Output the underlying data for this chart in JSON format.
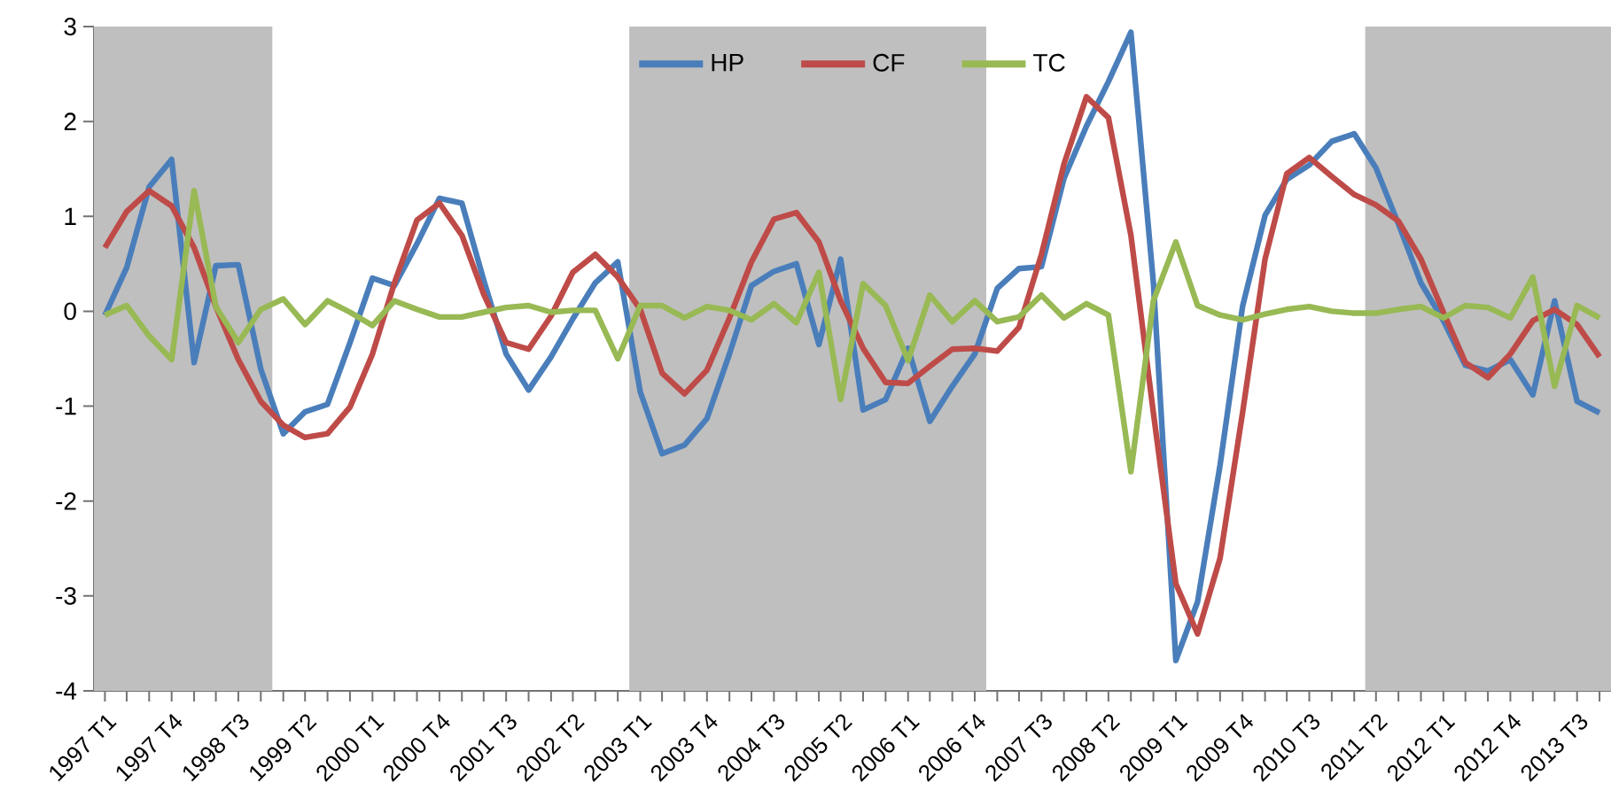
{
  "chart_data": {
    "type": "line",
    "x": [
      "1997-02-15",
      "1997-05-15",
      "1997-08-15",
      "1997-11-15",
      "1998-02-15",
      "1998-05-15",
      "1998-08-15",
      "1998-11-15",
      "1999-02-15",
      "1999-05-15",
      "1999-08-15",
      "1999-11-15",
      "2000-02-15",
      "2000-05-15",
      "2000-08-15",
      "2000-11-15",
      "2001-02-15",
      "2001-05-15",
      "2001-08-15",
      "2001-11-15",
      "2002-02-15",
      "2002-05-15",
      "2002-08-15",
      "2002-11-15",
      "2003-02-15",
      "2003-05-15",
      "2003-08-15",
      "2003-11-15",
      "2004-02-15",
      "2004-05-15",
      "2004-08-15",
      "2004-11-15",
      "2005-02-15",
      "2005-05-15",
      "2005-08-15",
      "2005-11-15",
      "2006-02-15",
      "2006-05-15",
      "2006-08-15",
      "2006-11-15",
      "2007-02-15",
      "2007-05-15",
      "2007-08-15",
      "2007-11-15",
      "2008-02-15",
      "2008-05-15",
      "2008-08-15",
      "2008-11-15",
      "2009-02-15",
      "2009-05-15",
      "2009-08-15",
      "2009-11-15",
      "2010-02-15",
      "2010-05-15",
      "2010-08-15",
      "2010-11-15",
      "2011-02-15",
      "2011-05-15",
      "2011-08-15",
      "2011-11-15",
      "2012-02-15",
      "2012-05-15",
      "2012-08-15",
      "2012-11-15",
      "2013-02-15",
      "2013-05-15",
      "2013-08-15",
      "2013-11-15"
    ],
    "xlim": [
      "1997-01-01",
      "2014-01-01"
    ],
    "xticks": [
      {
        "value": "1997-02-15",
        "label": "1997 T1"
      },
      {
        "value": "1997-05-15",
        "label": null
      },
      {
        "value": "1997-08-15",
        "label": null
      },
      {
        "value": "1997-11-15",
        "label": "1997 T4"
      },
      {
        "value": "1998-02-15",
        "label": null
      },
      {
        "value": "1998-05-15",
        "label": null
      },
      {
        "value": "1998-08-15",
        "label": "1998 T3"
      },
      {
        "value": "1998-11-15",
        "label": null
      },
      {
        "value": "1999-02-15",
        "label": null
      },
      {
        "value": "1999-05-15",
        "label": "1999 T2"
      },
      {
        "value": "1999-08-15",
        "label": null
      },
      {
        "value": "1999-11-15",
        "label": null
      },
      {
        "value": "2000-02-15",
        "label": "2000 T1"
      },
      {
        "value": "2000-05-15",
        "label": null
      },
      {
        "value": "2000-08-15",
        "label": null
      },
      {
        "value": "2000-11-15",
        "label": "2000 T4"
      },
      {
        "value": "2001-02-15",
        "label": null
      },
      {
        "value": "2001-05-15",
        "label": null
      },
      {
        "value": "2001-08-15",
        "label": "2001 T3"
      },
      {
        "value": "2001-11-15",
        "label": null
      },
      {
        "value": "2002-02-15",
        "label": null
      },
      {
        "value": "2002-05-15",
        "label": "2002 T2"
      },
      {
        "value": "2002-08-15",
        "label": null
      },
      {
        "value": "2002-11-15",
        "label": null
      },
      {
        "value": "2003-02-15",
        "label": "2003 T1"
      },
      {
        "value": "2003-05-15",
        "label": null
      },
      {
        "value": "2003-08-15",
        "label": null
      },
      {
        "value": "2003-11-15",
        "label": "2003 T4"
      },
      {
        "value": "2004-02-15",
        "label": null
      },
      {
        "value": "2004-05-15",
        "label": null
      },
      {
        "value": "2004-08-15",
        "label": "2004 T3"
      },
      {
        "value": "2004-11-15",
        "label": null
      },
      {
        "value": "2005-02-15",
        "label": null
      },
      {
        "value": "2005-05-15",
        "label": "2005 T2"
      },
      {
        "value": "2005-08-15",
        "label": null
      },
      {
        "value": "2005-11-15",
        "label": null
      },
      {
        "value": "2006-02-15",
        "label": "2006 T1"
      },
      {
        "value": "2006-05-15",
        "label": null
      },
      {
        "value": "2006-08-15",
        "label": null
      },
      {
        "value": "2006-11-15",
        "label": "2006 T4"
      },
      {
        "value": "2007-02-15",
        "label": null
      },
      {
        "value": "2007-05-15",
        "label": null
      },
      {
        "value": "2007-08-15",
        "label": "2007 T3"
      },
      {
        "value": "2007-11-15",
        "label": null
      },
      {
        "value": "2008-02-15",
        "label": null
      },
      {
        "value": "2008-05-15",
        "label": "2008 T2"
      },
      {
        "value": "2008-08-15",
        "label": null
      },
      {
        "value": "2008-11-15",
        "label": null
      },
      {
        "value": "2009-02-15",
        "label": "2009 T1"
      },
      {
        "value": "2009-05-15",
        "label": null
      },
      {
        "value": "2009-08-15",
        "label": null
      },
      {
        "value": "2009-11-15",
        "label": "2009 T4"
      },
      {
        "value": "2010-02-15",
        "label": null
      },
      {
        "value": "2010-05-15",
        "label": null
      },
      {
        "value": "2010-08-15",
        "label": "2010 T3"
      },
      {
        "value": "2010-11-15",
        "label": null
      },
      {
        "value": "2011-02-15",
        "label": null
      },
      {
        "value": "2011-05-15",
        "label": "2011 T2"
      },
      {
        "value": "2011-08-15",
        "label": null
      },
      {
        "value": "2011-11-15",
        "label": null
      },
      {
        "value": "2012-02-15",
        "label": "2012 T1"
      },
      {
        "value": "2012-05-15",
        "label": null
      },
      {
        "value": "2012-08-15",
        "label": null
      },
      {
        "value": "2012-11-15",
        "label": "2012 T4"
      },
      {
        "value": "2013-02-15",
        "label": null
      },
      {
        "value": "2013-05-15",
        "label": null
      },
      {
        "value": "2013-08-15",
        "label": "2013 T3"
      },
      {
        "value": "2013-11-15",
        "label": null
      }
    ],
    "series": [
      {
        "name": "HP",
        "color": "#4a7ebb",
        "values": [
          -0.04,
          0.46,
          1.31,
          1.6,
          -0.54,
          0.48,
          0.49,
          -0.61,
          -1.29,
          -1.06,
          -0.98,
          -0.33,
          0.35,
          0.27,
          0.71,
          1.19,
          1.14,
          0.33,
          -0.45,
          -0.83,
          -0.48,
          -0.08,
          0.3,
          0.52,
          -0.85,
          -1.5,
          -1.41,
          -1.13,
          -0.45,
          0.27,
          0.42,
          0.5,
          -0.35,
          0.55,
          -1.04,
          -0.93,
          -0.39,
          -1.16,
          -0.79,
          -0.45,
          0.24,
          0.45,
          0.47,
          1.4,
          1.95,
          2.42,
          2.94,
          0.3,
          -3.68,
          -3.06,
          -1.62,
          0.05,
          1.01,
          1.39,
          1.54,
          1.79,
          1.87,
          1.51,
          0.92,
          0.3,
          -0.1,
          -0.57,
          -0.63,
          -0.51,
          -0.88,
          0.11,
          -0.95,
          -1.07
        ]
      },
      {
        "name": "CF",
        "color": "#be4b48",
        "values": [
          0.67,
          1.05,
          1.27,
          1.11,
          0.67,
          0.05,
          -0.51,
          -0.95,
          -1.2,
          -1.33,
          -1.29,
          -1.01,
          -0.45,
          0.3,
          0.96,
          1.14,
          0.8,
          0.18,
          -0.33,
          -0.4,
          -0.05,
          0.41,
          0.6,
          0.36,
          0.02,
          -0.65,
          -0.87,
          -0.62,
          -0.07,
          0.52,
          0.97,
          1.04,
          0.73,
          0.11,
          -0.39,
          -0.75,
          -0.76,
          -0.58,
          -0.4,
          -0.39,
          -0.42,
          -0.17,
          0.6,
          1.55,
          2.26,
          2.04,
          0.8,
          -1.07,
          -2.87,
          -3.4,
          -2.6,
          -1.07,
          0.55,
          1.45,
          1.62,
          1.42,
          1.23,
          1.12,
          0.95,
          0.55,
          -0.01,
          -0.54,
          -0.7,
          -0.45,
          -0.1,
          0.02,
          -0.14,
          -0.48
        ]
      },
      {
        "name": "TC",
        "color": "#98b954",
        "values": [
          -0.04,
          0.06,
          -0.26,
          -0.51,
          1.27,
          0.05,
          -0.33,
          0.02,
          0.13,
          -0.14,
          0.11,
          -0.01,
          -0.15,
          0.11,
          0.02,
          -0.06,
          -0.06,
          -0.01,
          0.04,
          0.06,
          -0.01,
          0.01,
          0.01,
          -0.5,
          0.06,
          0.06,
          -0.07,
          0.05,
          0.01,
          -0.09,
          0.08,
          -0.12,
          0.41,
          -0.93,
          0.29,
          0.06,
          -0.52,
          0.17,
          -0.11,
          0.11,
          -0.11,
          -0.06,
          0.17,
          -0.07,
          0.08,
          -0.04,
          -1.69,
          0.11,
          0.73,
          0.06,
          -0.04,
          -0.09,
          -0.03,
          0.02,
          0.05,
          0,
          -0.02,
          -0.02,
          0.02,
          0.05,
          -0.07,
          0.06,
          0.04,
          -0.07,
          0.36,
          -0.79,
          0.06,
          -0.07
        ]
      }
    ],
    "ylim": [
      -4,
      3
    ],
    "yticks": [
      -4,
      -3,
      -2,
      -1,
      0,
      1,
      2,
      3
    ],
    "bands": [
      {
        "axis": "x",
        "from": "1997-01-01",
        "to": "1999-01-01",
        "color": "#bfbfbf"
      },
      {
        "axis": "x",
        "from": "2003-01-01",
        "to": "2007-01-01",
        "color": "#bfbfbf"
      },
      {
        "axis": "x",
        "from": "2011-04-01",
        "to": "2014-01-01",
        "color": "#bfbfbf"
      }
    ],
    "legend": "top",
    "grid": false
  }
}
